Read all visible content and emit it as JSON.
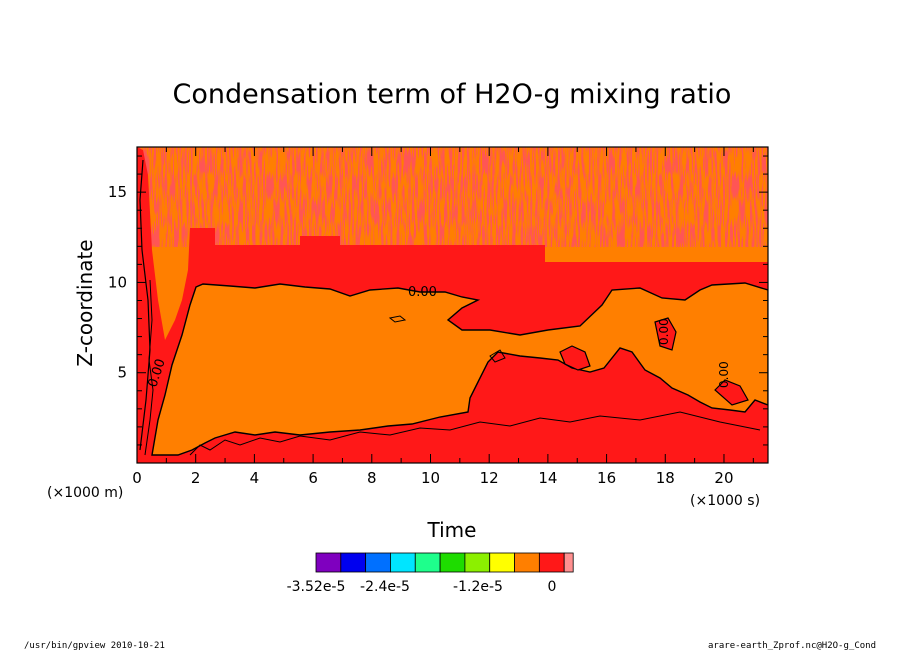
{
  "chart_data": {
    "type": "heatmap",
    "title": "Condensation term of H2O-g mixing ratio",
    "xlabel": "Time",
    "ylabel": "Z-coordinate",
    "x_unit": "(×1000 s)",
    "y_unit": "(×1000 m)",
    "xlim": [
      0,
      21.5
    ],
    "ylim": [
      0,
      17.5
    ],
    "x_ticks": [
      0,
      2,
      4,
      6,
      8,
      10,
      12,
      14,
      16,
      18,
      20
    ],
    "y_ticks": [
      5,
      10,
      15
    ],
    "contour_label": "0.00",
    "colorbar": {
      "colors": [
        "#7f00bf",
        "#0000ef",
        "#0070ff",
        "#00e5ff",
        "#1eff8c",
        "#1edc00",
        "#8cf000",
        "#ffff00",
        "#ff7f00",
        "#ff1818",
        "#ff9090"
      ],
      "tick_labels": [
        "-3.52e-5",
        "-2.4e-5",
        "-1.2e-5",
        "0"
      ]
    },
    "regions": [
      {
        "value_class": "slightly negative",
        "color": "#ff7f00",
        "description_x": [
          2,
          21.5
        ],
        "z_range": [
          2,
          10
        ]
      },
      {
        "value_class": "near zero",
        "color": "#ff1818",
        "z_range": [
          10,
          12.5
        ]
      },
      {
        "value_class": "near zero",
        "color": "#ff1818",
        "z_range": [
          0,
          2
        ]
      }
    ]
  },
  "footer": {
    "left": "/usr/bin/gpview  2010-10-21",
    "right": "arare-earth_Zprof.nc@H2O-g_Cond"
  }
}
